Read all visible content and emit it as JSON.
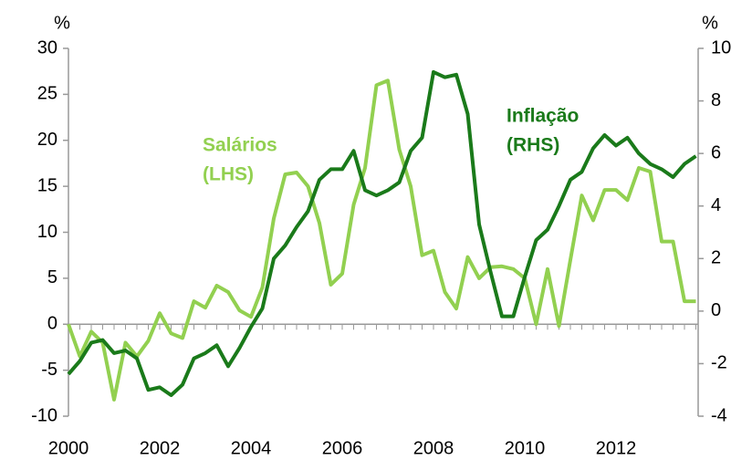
{
  "chart_data": {
    "type": "line",
    "y_unit": "%",
    "y2_unit": "%",
    "x": [
      2000,
      2000.25,
      2000.5,
      2000.75,
      2001,
      2001.25,
      2001.5,
      2001.75,
      2002,
      2002.25,
      2002.5,
      2002.75,
      2003,
      2003.25,
      2003.5,
      2003.75,
      2004,
      2004.25,
      2004.5,
      2004.75,
      2005,
      2005.25,
      2005.5,
      2005.75,
      2006,
      2006.25,
      2006.5,
      2006.75,
      2007,
      2007.25,
      2007.5,
      2007.75,
      2008,
      2008.25,
      2008.5,
      2008.75,
      2009,
      2009.25,
      2009.5,
      2009.75,
      2010,
      2010.25,
      2010.5,
      2010.75,
      2011,
      2011.25,
      2011.5,
      2011.75,
      2012,
      2012.25,
      2012.5,
      2012.75,
      2013,
      2013.25,
      2013.5,
      2013.75
    ],
    "xlim": [
      2000,
      2013.8
    ],
    "xticks": [
      2000,
      2002,
      2004,
      2006,
      2008,
      2010,
      2012
    ],
    "ylim": [
      -10,
      30
    ],
    "yticks": [
      -10,
      -5,
      0,
      5,
      10,
      15,
      20,
      25,
      30
    ],
    "y2lim": [
      -4,
      10
    ],
    "y2ticks": [
      -4,
      -2,
      0,
      2,
      4,
      6,
      8,
      10
    ],
    "series": [
      {
        "name": "Salários",
        "axis_note": "(LHS)",
        "color": "#92d050",
        "axis": "y",
        "values": [
          0,
          -3.5,
          -0.8,
          -2,
          -8.2,
          -2,
          -3.5,
          -1.8,
          1.2,
          -1,
          -1.5,
          2.5,
          1.8,
          4.2,
          3.5,
          1.5,
          0.8,
          4,
          11.5,
          16.3,
          16.5,
          15,
          11,
          4.3,
          5.5,
          13,
          17,
          26,
          26.5,
          19,
          15,
          7.5,
          8,
          3.5,
          1.7,
          7.3,
          5,
          6.2,
          6.3,
          6,
          5,
          0,
          6,
          -0.2,
          7,
          14,
          11.3,
          14.6,
          14.6,
          13.5,
          17,
          16.6,
          9,
          9,
          2.5,
          2.5
        ]
      },
      {
        "name": "Inflação",
        "axis_note": "(RHS)",
        "color": "#1a7a1a",
        "axis": "y2",
        "values": [
          -2.4,
          -1.9,
          -1.2,
          -1.1,
          -1.6,
          -1.5,
          -1.8,
          -3,
          -2.9,
          -3.2,
          -2.8,
          -1.8,
          -1.6,
          -1.3,
          -2.1,
          -1.4,
          -0.6,
          0.1,
          2,
          2.5,
          3.2,
          3.8,
          5,
          5.4,
          5.4,
          6.1,
          4.6,
          4.4,
          4.6,
          4.9,
          6.1,
          6.6,
          9.1,
          8.9,
          9,
          7.5,
          3.3,
          1.5,
          -0.2,
          -0.2,
          1.3,
          2.7,
          3.1,
          4,
          5,
          5.3,
          6.2,
          6.7,
          6.3,
          6.6,
          6,
          5.6,
          5.4,
          5.1,
          5.6,
          5.9
        ]
      }
    ]
  }
}
